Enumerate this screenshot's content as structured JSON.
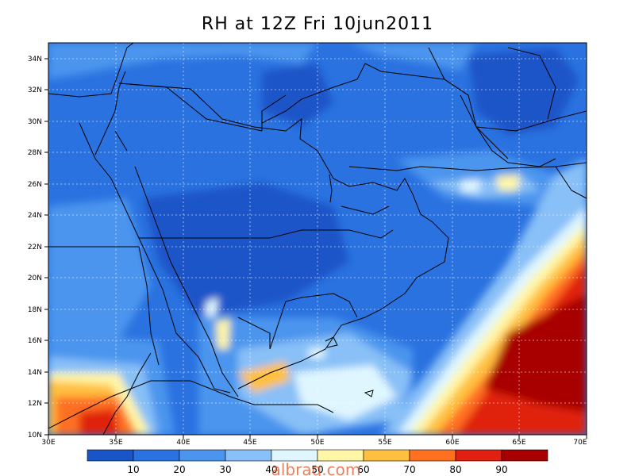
{
  "title": "RH at 12Z Fri 10jun2011",
  "watermark": "albraq.com",
  "lat_labels": [
    "34N",
    "32N",
    "30N",
    "28N",
    "26N",
    "24N",
    "22N",
    "20N",
    "18N",
    "16N",
    "14N",
    "12N",
    "10N"
  ],
  "lon_labels": [
    "30E",
    "35E",
    "40E",
    "45E",
    "50E",
    "55E",
    "60E",
    "65E",
    "70E"
  ],
  "colorbar": {
    "labels": [
      "10",
      "20",
      "30",
      "40",
      "50",
      "60",
      "70",
      "80",
      "90"
    ],
    "colors": [
      "#1a55c8",
      "#2a72e0",
      "#4c95ee",
      "#88c0f7",
      "#dff6ff",
      "#fff6a6",
      "#ffc040",
      "#ff7020",
      "#e02010",
      "#a80000"
    ]
  }
}
